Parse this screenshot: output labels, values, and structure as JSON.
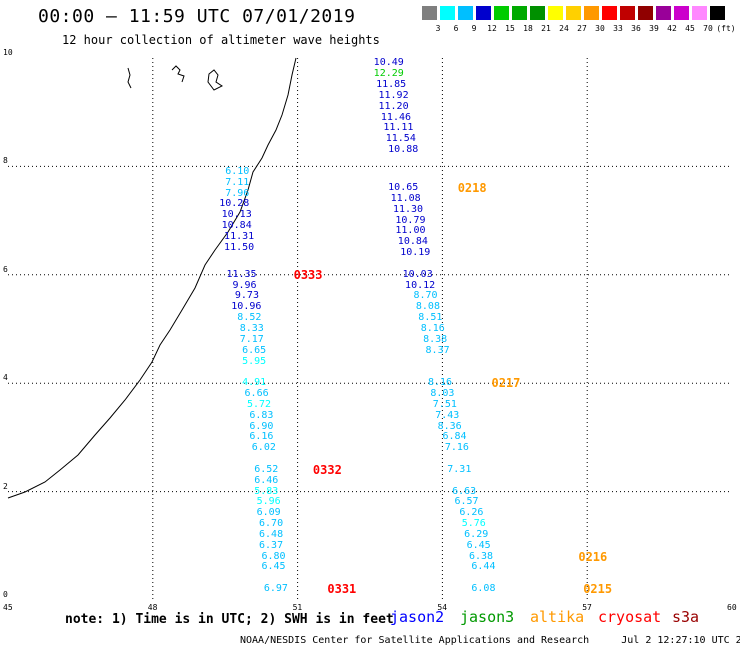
{
  "header": {
    "title": "00:00 – 11:59 UTC 07/01/2019",
    "subtitle": "12 hour collection of altimeter wave heights"
  },
  "colorbar": {
    "labels": [
      "3",
      "6",
      "9",
      "12",
      "15",
      "18",
      "21",
      "24",
      "27",
      "30",
      "33",
      "36",
      "39",
      "42",
      "45",
      "70",
      "(ft)"
    ],
    "colors": [
      "#7f7f7f",
      "#00ffff",
      "#00bfff",
      "#0000cd",
      "#00cc00",
      "#00aa00",
      "#009000",
      "#ffff00",
      "#ffd000",
      "#ff9900",
      "#ff0000",
      "#c00000",
      "#900000",
      "#990099",
      "#cc00cc",
      "#ff88ff",
      "#000000"
    ]
  },
  "axes": {
    "x_ticks": [
      "45",
      "48",
      "51",
      "54",
      "57",
      "60"
    ],
    "y_ticks": [
      "0",
      "2",
      "4",
      "6",
      "8",
      "10"
    ]
  },
  "tracks": [
    {
      "satellite": "jason2",
      "time_labels": [
        {
          "text": "0333",
          "color": "#ff0000",
          "lon": 51.0,
          "lat": 6.0
        },
        {
          "text": "0332",
          "color": "#ff0000",
          "lon": 51.4,
          "lat": 2.4
        }
      ],
      "points": [
        {
          "lon": 50.0,
          "lat": 7.9,
          "v": "6.10",
          "c": "#00bfff"
        },
        {
          "lon": 50.0,
          "lat": 7.7,
          "v": "7.11",
          "c": "#00bfff"
        },
        {
          "lon": 50.0,
          "lat": 7.5,
          "v": "7.96",
          "c": "#00bfff"
        },
        {
          "lon": 50.0,
          "lat": 7.3,
          "v": "10.28",
          "c": "#0000cd"
        },
        {
          "lon": 50.05,
          "lat": 7.1,
          "v": "10.13",
          "c": "#0000cd"
        },
        {
          "lon": 50.05,
          "lat": 6.9,
          "v": "10.84",
          "c": "#0000cd"
        },
        {
          "lon": 50.1,
          "lat": 6.7,
          "v": "11.31",
          "c": "#0000cd"
        },
        {
          "lon": 50.1,
          "lat": 6.5,
          "v": "11.50",
          "c": "#0000cd"
        },
        {
          "lon": 50.15,
          "lat": 6.0,
          "v": "11.35",
          "c": "#0000cd"
        },
        {
          "lon": 50.15,
          "lat": 5.8,
          "v": "9.96",
          "c": "#0000cd"
        },
        {
          "lon": 50.2,
          "lat": 5.6,
          "v": "9.73",
          "c": "#0000cd"
        },
        {
          "lon": 50.25,
          "lat": 5.4,
          "v": "10.96",
          "c": "#0000cd"
        },
        {
          "lon": 50.25,
          "lat": 5.2,
          "v": "8.52",
          "c": "#00bfff"
        },
        {
          "lon": 50.3,
          "lat": 5.0,
          "v": "8.33",
          "c": "#00bfff"
        },
        {
          "lon": 50.3,
          "lat": 4.8,
          "v": "7.17",
          "c": "#00bfff"
        },
        {
          "lon": 50.35,
          "lat": 4.6,
          "v": "6.65",
          "c": "#00bfff"
        },
        {
          "lon": 50.35,
          "lat": 4.4,
          "v": "5.95",
          "c": "#00ffff"
        },
        {
          "lon": 50.35,
          "lat": 4.0,
          "v": "4.91",
          "c": "#00ffff"
        },
        {
          "lon": 50.4,
          "lat": 3.8,
          "v": "6.66",
          "c": "#00bfff"
        },
        {
          "lon": 50.45,
          "lat": 3.6,
          "v": "5.72",
          "c": "#00ffff"
        },
        {
          "lon": 50.5,
          "lat": 3.4,
          "v": "6.83",
          "c": "#00bfff"
        },
        {
          "lon": 50.5,
          "lat": 3.2,
          "v": "6.90",
          "c": "#00bfff"
        },
        {
          "lon": 50.5,
          "lat": 3.0,
          "v": "6.16",
          "c": "#00bfff"
        },
        {
          "lon": 50.55,
          "lat": 2.8,
          "v": "6.02",
          "c": "#00bfff"
        },
        {
          "lon": 50.6,
          "lat": 2.4,
          "v": "6.52",
          "c": "#00bfff"
        },
        {
          "lon": 50.6,
          "lat": 2.2,
          "v": "6.46",
          "c": "#00bfff"
        },
        {
          "lon": 50.6,
          "lat": 2.0,
          "v": "5.83",
          "c": "#00ffff"
        },
        {
          "lon": 50.65,
          "lat": 1.8,
          "v": "5.96",
          "c": "#00ffff"
        },
        {
          "lon": 50.65,
          "lat": 1.6,
          "v": "6.09",
          "c": "#00bfff"
        },
        {
          "lon": 50.7,
          "lat": 1.4,
          "v": "6.70",
          "c": "#00bfff"
        },
        {
          "lon": 50.7,
          "lat": 1.2,
          "v": "6.48",
          "c": "#00bfff"
        },
        {
          "lon": 50.7,
          "lat": 1.0,
          "v": "6.37",
          "c": "#00bfff"
        },
        {
          "lon": 50.75,
          "lat": 0.8,
          "v": "6.80",
          "c": "#00bfff"
        },
        {
          "lon": 50.75,
          "lat": 0.6,
          "v": "6.45",
          "c": "#00bfff"
        },
        {
          "lon": 50.8,
          "lat": 0.2,
          "v": "6.97",
          "c": "#00bfff"
        }
      ]
    },
    {
      "satellite": "jason2",
      "time_labels": [
        {
          "text": "0331",
          "color": "#ff0000",
          "lon": 51.7,
          "lat": 0.2
        }
      ],
      "points": []
    },
    {
      "satellite": "altika",
      "time_labels": [
        {
          "text": "0218",
          "color": "#ff9900",
          "lon": 54.4,
          "lat": 7.6
        },
        {
          "text": "0217",
          "color": "#ff9900",
          "lon": 55.1,
          "lat": 4.0
        },
        {
          "text": "0216",
          "color": "#ff9900",
          "lon": 56.9,
          "lat": 0.8
        },
        {
          "text": "0215",
          "color": "#ff9900",
          "lon": 57.0,
          "lat": 0.2
        }
      ],
      "points": [
        {
          "lon": 53.2,
          "lat": 9.9,
          "v": "10.49",
          "c": "#0000cd"
        },
        {
          "lon": 53.2,
          "lat": 9.7,
          "v": "12.29",
          "c": "#00cc00"
        },
        {
          "lon": 53.25,
          "lat": 9.5,
          "v": "11.85",
          "c": "#0000cd"
        },
        {
          "lon": 53.3,
          "lat": 9.3,
          "v": "11.92",
          "c": "#0000cd"
        },
        {
          "lon": 53.3,
          "lat": 9.1,
          "v": "11.20",
          "c": "#0000cd"
        },
        {
          "lon": 53.35,
          "lat": 8.9,
          "v": "11.46",
          "c": "#0000cd"
        },
        {
          "lon": 53.4,
          "lat": 8.7,
          "v": "11.11",
          "c": "#0000cd"
        },
        {
          "lon": 53.45,
          "lat": 8.5,
          "v": "11.54",
          "c": "#0000cd"
        },
        {
          "lon": 53.5,
          "lat": 8.3,
          "v": "10.88",
          "c": "#0000cd"
        },
        {
          "lon": 53.5,
          "lat": 7.6,
          "v": "10.65",
          "c": "#0000cd"
        },
        {
          "lon": 53.55,
          "lat": 7.4,
          "v": "11.08",
          "c": "#0000cd"
        },
        {
          "lon": 53.6,
          "lat": 7.2,
          "v": "11.30",
          "c": "#0000cd"
        },
        {
          "lon": 53.65,
          "lat": 7.0,
          "v": "10.79",
          "c": "#0000cd"
        },
        {
          "lon": 53.65,
          "lat": 6.8,
          "v": "11.00",
          "c": "#0000cd"
        },
        {
          "lon": 53.7,
          "lat": 6.6,
          "v": "10.84",
          "c": "#0000cd"
        },
        {
          "lon": 53.75,
          "lat": 6.4,
          "v": "10.19",
          "c": "#0000cd"
        },
        {
          "lon": 53.8,
          "lat": 6.0,
          "v": "10.03",
          "c": "#0000cd"
        },
        {
          "lon": 53.85,
          "lat": 5.8,
          "v": "10.12",
          "c": "#0000cd"
        },
        {
          "lon": 53.9,
          "lat": 5.6,
          "v": "8.70",
          "c": "#00bfff"
        },
        {
          "lon": 53.95,
          "lat": 5.4,
          "v": "8.08",
          "c": "#00bfff"
        },
        {
          "lon": 54.0,
          "lat": 5.2,
          "v": "8.51",
          "c": "#00bfff"
        },
        {
          "lon": 54.05,
          "lat": 5.0,
          "v": "8.16",
          "c": "#00bfff"
        },
        {
          "lon": 54.1,
          "lat": 4.8,
          "v": "8.38",
          "c": "#00bfff"
        },
        {
          "lon": 54.15,
          "lat": 4.6,
          "v": "8.37",
          "c": "#00bfff"
        },
        {
          "lon": 54.2,
          "lat": 4.0,
          "v": "8.16",
          "c": "#00bfff"
        },
        {
          "lon": 54.25,
          "lat": 3.8,
          "v": "8.03",
          "c": "#00bfff"
        },
        {
          "lon": 54.3,
          "lat": 3.6,
          "v": "7.51",
          "c": "#00bfff"
        },
        {
          "lon": 54.35,
          "lat": 3.4,
          "v": "7.43",
          "c": "#00bfff"
        },
        {
          "lon": 54.4,
          "lat": 3.2,
          "v": "8.36",
          "c": "#00bfff"
        },
        {
          "lon": 54.5,
          "lat": 3.0,
          "v": "6.84",
          "c": "#00bfff"
        },
        {
          "lon": 54.55,
          "lat": 2.8,
          "v": "7.16",
          "c": "#00bfff"
        },
        {
          "lon": 54.6,
          "lat": 2.4,
          "v": "7.31",
          "c": "#00bfff"
        },
        {
          "lon": 54.7,
          "lat": 2.0,
          "v": "6.63",
          "c": "#00bfff"
        },
        {
          "lon": 54.75,
          "lat": 1.8,
          "v": "6.57",
          "c": "#00bfff"
        },
        {
          "lon": 54.85,
          "lat": 1.6,
          "v": "6.26",
          "c": "#00bfff"
        },
        {
          "lon": 54.9,
          "lat": 1.4,
          "v": "5.76",
          "c": "#00ffff"
        },
        {
          "lon": 54.95,
          "lat": 1.2,
          "v": "6.29",
          "c": "#00bfff"
        },
        {
          "lon": 55.0,
          "lat": 1.0,
          "v": "6.45",
          "c": "#00bfff"
        },
        {
          "lon": 55.05,
          "lat": 0.8,
          "v": "6.38",
          "c": "#00bfff"
        },
        {
          "lon": 55.1,
          "lat": 0.6,
          "v": "6.44",
          "c": "#00bfff"
        },
        {
          "lon": 55.1,
          "lat": 0.2,
          "v": "6.08",
          "c": "#00bfff"
        }
      ]
    }
  ],
  "note": "note: 1) Time is in UTC; 2) SWH is in feet",
  "legend": [
    {
      "name": "jason2",
      "color": "#0000ff"
    },
    {
      "name": "jason3",
      "color": "#009900"
    },
    {
      "name": "altika",
      "color": "#ff9900"
    },
    {
      "name": "cryosat",
      "color": "#ff0000"
    },
    {
      "name": "s3a",
      "color": "#990000"
    }
  ],
  "footer": {
    "credit": "NOAA/NESDIS Center for Satellite Applications and Research",
    "timestamp": "Jul  2 12:27:10 UTC 2019"
  }
}
